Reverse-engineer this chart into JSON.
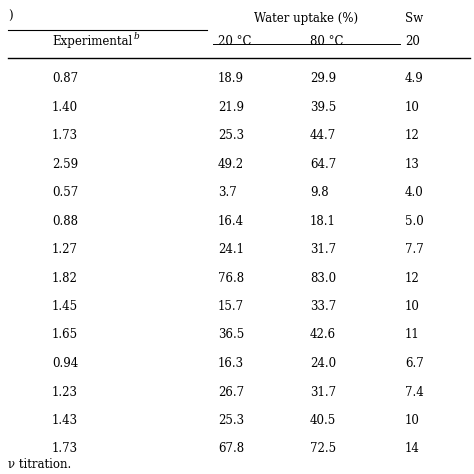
{
  "header1_left": ")",
  "header1_center": "Water uptake (%)",
  "header1_right": "Sw",
  "header2_col1": "Experimental",
  "header2_col2": "20 °C",
  "header2_col3": "80 °C",
  "header2_col4": "20",
  "rows": [
    [
      "0.87",
      "18.9",
      "29.9",
      "4.9"
    ],
    [
      "1.40",
      "21.9",
      "39.5",
      "10"
    ],
    [
      "1.73",
      "25.3",
      "44.7",
      "12"
    ],
    [
      "2.59",
      "49.2",
      "64.7",
      "13"
    ],
    [
      "0.57",
      "3.7",
      "9.8",
      "4.0"
    ],
    [
      "0.88",
      "16.4",
      "18.1",
      "5.0"
    ],
    [
      "1.27",
      "24.1",
      "31.7",
      "7.7"
    ],
    [
      "1.82",
      "76.8",
      "83.0",
      "12"
    ],
    [
      "1.45",
      "15.7",
      "33.7",
      "10"
    ],
    [
      "1.65",
      "36.5",
      "42.6",
      "11"
    ],
    [
      "0.94",
      "16.3",
      "24.0",
      "6.7"
    ],
    [
      "1.23",
      "26.7",
      "31.7",
      "7.4"
    ],
    [
      "1.43",
      "25.3",
      "40.5",
      "10"
    ],
    [
      "1.73",
      "67.8",
      "72.5",
      "14"
    ]
  ],
  "footer": "ν titration.",
  "bg_color": "#ffffff",
  "text_color": "#000000",
  "font_size": 8.5,
  "header_font_size": 8.5
}
